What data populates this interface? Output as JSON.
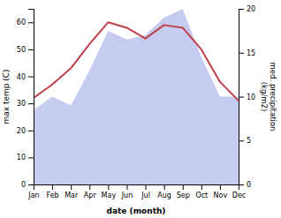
{
  "chart_data": {
    "type": "line",
    "categories": [
      "Jan",
      "Feb",
      "Mar",
      "Apr",
      "May",
      "Jun",
      "Jul",
      "Aug",
      "Sep",
      "Oct",
      "Nov",
      "Dec"
    ],
    "series": [
      {
        "type": "area",
        "axis": "y2",
        "color": "#c5ccf0",
        "values": [
          8.5,
          10,
          9,
          13,
          17.5,
          16.5,
          17,
          19,
          20,
          14.5,
          10,
          10
        ]
      },
      {
        "type": "line",
        "color": "#c0404a",
        "values": [
          32,
          37,
          43,
          52,
          60,
          58,
          54,
          59,
          58,
          50,
          38,
          31
        ]
      }
    ],
    "xlabel": "date (month)",
    "ylabel": "max temp (C)",
    "y2label": "med. precipitation\n(kg/m2)",
    "ylim": [
      0,
      65
    ],
    "yticks": [
      0,
      10,
      20,
      30,
      40,
      50,
      60
    ],
    "y2lim": [
      0,
      20
    ],
    "y2ticks": [
      0,
      5,
      10,
      15,
      20
    ],
    "grid": false
  }
}
